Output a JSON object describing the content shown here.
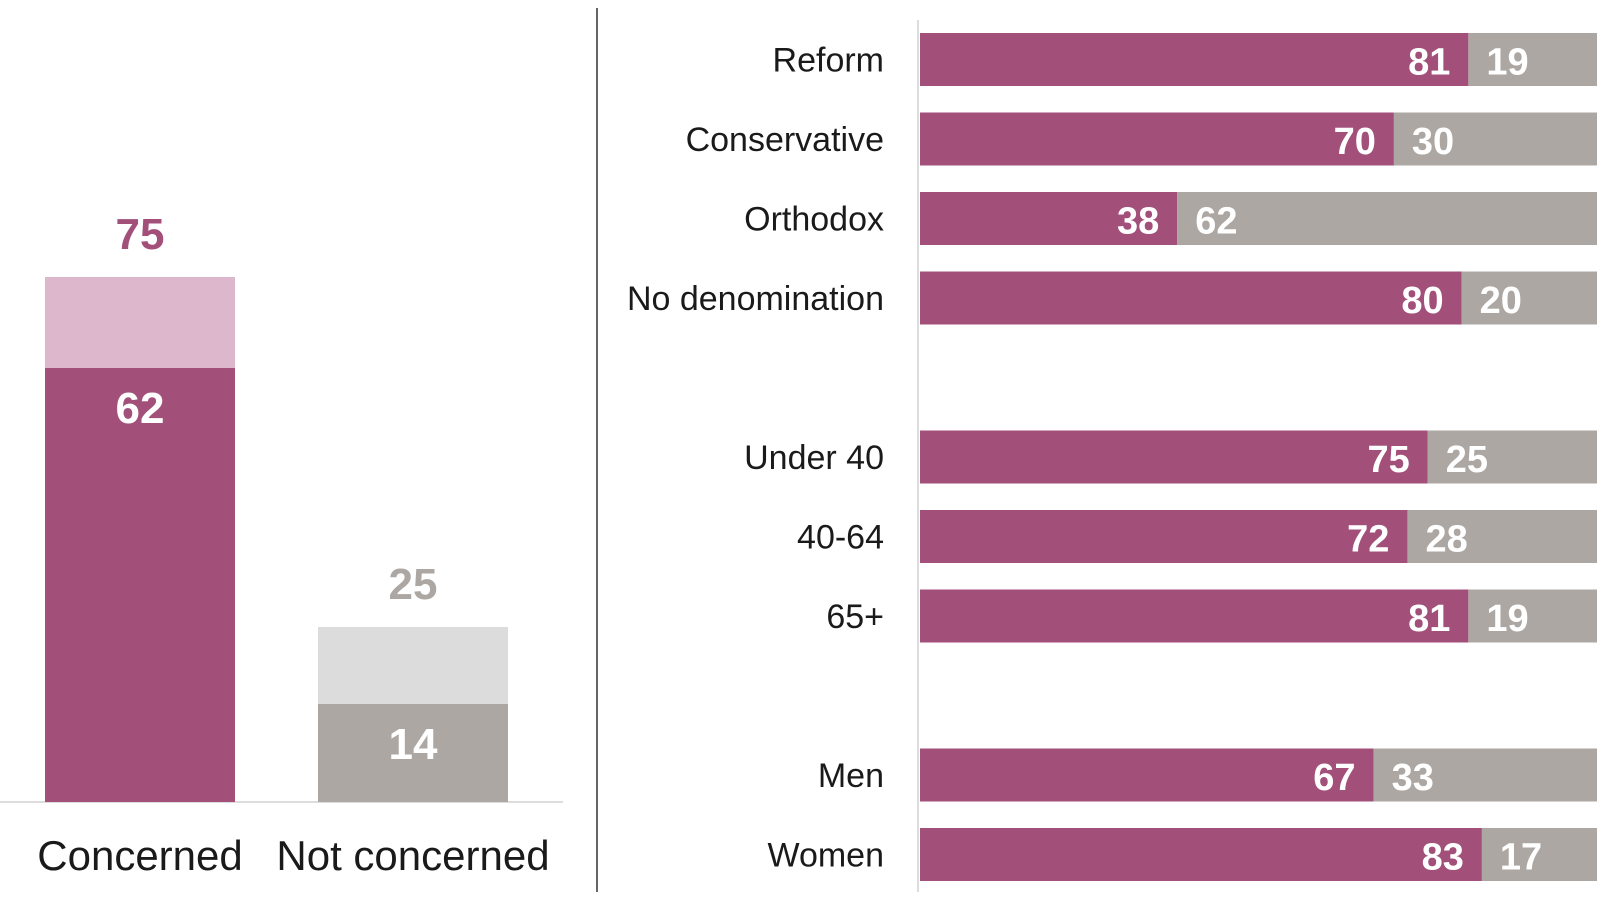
{
  "colors": {
    "concerned": "#a24f79",
    "concerned_light": "#ddb7cc",
    "not_concerned": "#ada7a3",
    "not_concerned_light": "#dcdcdc",
    "label_text": "#ffffff",
    "category_text": "#1a1a1a",
    "axis": "#dddddd",
    "divider": "#333333"
  },
  "chart_data": [
    {
      "type": "bar",
      "stacked": true,
      "categories": [
        "Concerned",
        "Not concerned"
      ],
      "series": [
        {
          "values": [
            62,
            14
          ]
        },
        {
          "values": [
            13,
            11
          ]
        }
      ],
      "totals": [
        75,
        25
      ],
      "ylim": [
        0,
        75
      ]
    },
    {
      "type": "bar",
      "orientation": "horizontal",
      "stacked": true,
      "normalized": true,
      "groups": [
        {
          "categories": [
            "Reform",
            "Conservative",
            "Orthodox",
            "No denomination"
          ]
        },
        {
          "categories": [
            "Under 40",
            "40-64",
            "65+"
          ]
        },
        {
          "categories": [
            "Men",
            "Women"
          ]
        }
      ],
      "series": [
        {
          "values": [
            81,
            70,
            38,
            80,
            75,
            72,
            81,
            67,
            83
          ]
        },
        {
          "values": [
            19,
            30,
            62,
            20,
            25,
            28,
            19,
            33,
            17
          ]
        }
      ],
      "xlim": [
        0,
        100
      ]
    }
  ]
}
